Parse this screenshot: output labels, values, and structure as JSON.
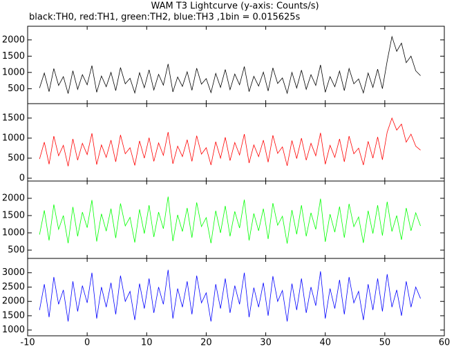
{
  "chart_data": [
    {
      "type": "line",
      "title": "WAM T3 Lightcurve (y-axis: Counts/s)",
      "subtitle": "black:TH0, red:TH1, green:TH2, blue:TH3 ,1bin = 0.015625s",
      "x": [
        -8,
        -7.2,
        -6.4,
        -5.6,
        -4.8,
        -4,
        -3.2,
        -2.4,
        -1.6,
        -0.8,
        0,
        0.8,
        1.6,
        2.4,
        3.2,
        4,
        4.8,
        5.6,
        6.4,
        7.2,
        8,
        8.8,
        9.6,
        10.4,
        11.2,
        12,
        12.8,
        13.6,
        14.4,
        15.2,
        16,
        16.8,
        17.6,
        18.4,
        19.2,
        20,
        20.8,
        21.6,
        22.4,
        23.2,
        24,
        24.8,
        25.6,
        26.4,
        27.2,
        28,
        28.8,
        29.6,
        30.4,
        31.2,
        32,
        32.8,
        33.6,
        34.4,
        35.2,
        36,
        36.8,
        37.6,
        38.4,
        39.2,
        40,
        40.8,
        41.6,
        42.4,
        43.2,
        44,
        44.8,
        45.6,
        46.4,
        47.2,
        48,
        48.8,
        49.6,
        50.4,
        51.2,
        52,
        52.8,
        53.6,
        54.4,
        55.2,
        56
      ],
      "series": [
        {
          "color": "#000000",
          "values": [
            520,
            980,
            410,
            1120,
            600,
            870,
            350,
            1050,
            480,
            930,
            620,
            1210,
            390,
            890,
            560,
            1000,
            440,
            1150,
            650,
            820,
            370,
            990,
            530,
            1080,
            460,
            940,
            610,
            1260,
            400,
            860,
            570,
            1020,
            450,
            1130,
            640,
            810,
            380,
            970,
            540,
            1090,
            470,
            950,
            620,
            1180,
            410,
            880,
            580,
            1010,
            430,
            1140,
            660,
            830,
            360,
            1000,
            520,
            1070,
            480,
            930,
            600,
            1230,
            390,
            870,
            560,
            1040,
            440,
            1120,
            650,
            800,
            370,
            980,
            540,
            1100,
            500,
            1350,
            2100,
            1650,
            1900,
            1300,
            1500,
            1050,
            900
          ]
        }
      ],
      "xlim": [
        -10,
        60
      ],
      "ylim": [
        40,
        2420
      ],
      "yticks": [
        500,
        1000,
        1500,
        2000
      ]
    },
    {
      "type": "line",
      "x": [
        -8,
        -7.2,
        -6.4,
        -5.6,
        -4.8,
        -4,
        -3.2,
        -2.4,
        -1.6,
        -0.8,
        0,
        0.8,
        1.6,
        2.4,
        3.2,
        4,
        4.8,
        5.6,
        6.4,
        7.2,
        8,
        8.8,
        9.6,
        10.4,
        11.2,
        12,
        12.8,
        13.6,
        14.4,
        15.2,
        16,
        16.8,
        17.6,
        18.4,
        19.2,
        20,
        20.8,
        21.6,
        22.4,
        23.2,
        24,
        24.8,
        25.6,
        26.4,
        27.2,
        28,
        28.8,
        29.6,
        30.4,
        31.2,
        32,
        32.8,
        33.6,
        34.4,
        35.2,
        36,
        36.8,
        37.6,
        38.4,
        39.2,
        40,
        40.8,
        41.6,
        42.4,
        43.2,
        44,
        44.8,
        45.6,
        46.4,
        47.2,
        48,
        48.8,
        49.6,
        50.4,
        51.2,
        52,
        52.8,
        53.6,
        54.4,
        55.2,
        56
      ],
      "series": [
        {
          "color": "#ff0000",
          "values": [
            480,
            900,
            350,
            1050,
            560,
            820,
            300,
            980,
            450,
            870,
            590,
            1120,
            340,
            830,
            520,
            950,
            410,
            1080,
            610,
            760,
            320,
            930,
            500,
            1010,
            420,
            880,
            570,
            1150,
            360,
            800,
            540,
            960,
            420,
            1060,
            600,
            760,
            330,
            910,
            500,
            1020,
            440,
            890,
            580,
            1100,
            380,
            830,
            540,
            950,
            400,
            1070,
            620,
            780,
            310,
            940,
            490,
            1000,
            450,
            870,
            560,
            1130,
            350,
            820,
            520,
            980,
            410,
            1050,
            610,
            750,
            330,
            920,
            500,
            1030,
            460,
            1150,
            1500,
            1200,
            1350,
            900,
            1100,
            800,
            700
          ]
        }
      ],
      "xlim": [
        -10,
        60
      ],
      "ylim": [
        -70,
        1860
      ],
      "yticks": [
        0,
        500,
        1000,
        1500
      ]
    },
    {
      "type": "line",
      "x": [
        -8,
        -7.2,
        -6.4,
        -5.6,
        -4.8,
        -4,
        -3.2,
        -2.4,
        -1.6,
        -0.8,
        0,
        0.8,
        1.6,
        2.4,
        3.2,
        4,
        4.8,
        5.6,
        6.4,
        7.2,
        8,
        8.8,
        9.6,
        10.4,
        11.2,
        12,
        12.8,
        13.6,
        14.4,
        15.2,
        16,
        16.8,
        17.6,
        18.4,
        19.2,
        20,
        20.8,
        21.6,
        22.4,
        23.2,
        24,
        24.8,
        25.6,
        26.4,
        27.2,
        28,
        28.8,
        29.6,
        30.4,
        31.2,
        32,
        32.8,
        33.6,
        34.4,
        35.2,
        36,
        36.8,
        37.6,
        38.4,
        39.2,
        40,
        40.8,
        41.6,
        42.4,
        43.2,
        44,
        44.8,
        45.6,
        46.4,
        47.2,
        48,
        48.8,
        49.6,
        50.4,
        51.2,
        52,
        52.8,
        53.6,
        54.4,
        55.2,
        56
      ],
      "series": [
        {
          "color": "#00ff00",
          "values": [
            950,
            1650,
            780,
            1820,
            1100,
            1500,
            700,
            1750,
            900,
            1600,
            1150,
            1950,
            750,
            1550,
            1050,
            1700,
            850,
            1850,
            1200,
            1450,
            720,
            1680,
            980,
            1800,
            880,
            1600,
            1120,
            2050,
            760,
            1520,
            1040,
            1720,
            860,
            1880,
            1180,
            1440,
            700,
            1640,
            1000,
            1780,
            900,
            1620,
            1140,
            1960,
            780,
            1560,
            1060,
            1700,
            820,
            1860,
            1220,
            1480,
            690,
            1660,
            960,
            1800,
            900,
            1580,
            1100,
            1990,
            740,
            1540,
            1020,
            1760,
            860,
            1840,
            1180,
            1460,
            710,
            1640,
            980,
            1800,
            920,
            1900,
            1040,
            1500,
            800,
            1720,
            1060,
            1580,
            1200
          ]
        }
      ],
      "xlim": [
        -10,
        60
      ],
      "ylim": [
        260,
        2500
      ],
      "yticks": [
        500,
        1000,
        1500,
        2000
      ]
    },
    {
      "type": "line",
      "x": [
        -8,
        -7.2,
        -6.4,
        -5.6,
        -4.8,
        -4,
        -3.2,
        -2.4,
        -1.6,
        -0.8,
        0,
        0.8,
        1.6,
        2.4,
        3.2,
        4,
        4.8,
        5.6,
        6.4,
        7.2,
        8,
        8.8,
        9.6,
        10.4,
        11.2,
        12,
        12.8,
        13.6,
        14.4,
        15.2,
        16,
        16.8,
        17.6,
        18.4,
        19.2,
        20,
        20.8,
        21.6,
        22.4,
        23.2,
        24,
        24.8,
        25.6,
        26.4,
        27.2,
        28,
        28.8,
        29.6,
        30.4,
        31.2,
        32,
        32.8,
        33.6,
        34.4,
        35.2,
        36,
        36.8,
        37.6,
        38.4,
        39.2,
        40,
        40.8,
        41.6,
        42.4,
        43.2,
        44,
        44.8,
        45.6,
        46.4,
        47.2,
        48,
        48.8,
        49.6,
        50.4,
        51.2,
        52,
        52.8,
        53.6,
        54.4,
        55.2,
        56
      ],
      "series": [
        {
          "color": "#0000ff",
          "values": [
            1700,
            2600,
            1450,
            2850,
            1900,
            2400,
            1300,
            2700,
            1650,
            2550,
            1950,
            3000,
            1400,
            2500,
            1800,
            2650,
            1550,
            2900,
            2000,
            2350,
            1350,
            2620,
            1750,
            2800,
            1600,
            2500,
            1900,
            3100,
            1400,
            2450,
            1800,
            2700,
            1550,
            2900,
            1950,
            2300,
            1300,
            2600,
            1750,
            2800,
            1600,
            2550,
            1900,
            3000,
            1450,
            2480,
            1800,
            2650,
            1500,
            2880,
            2000,
            2380,
            1300,
            2620,
            1700,
            2800,
            1600,
            2500,
            1850,
            3050,
            1400,
            2450,
            1750,
            2750,
            1550,
            2850,
            1950,
            2350,
            1350,
            2600,
            1700,
            2800,
            1650,
            2950,
            1800,
            2400,
            1500,
            2700,
            1800,
            2500,
            2100
          ]
        }
      ],
      "xlim": [
        -10,
        60
      ],
      "ylim": [
        800,
        3500
      ],
      "yticks": [
        1000,
        1500,
        2000,
        2500,
        3000
      ],
      "xticks": [
        -10,
        0,
        10,
        20,
        30,
        40,
        50,
        60
      ]
    }
  ]
}
